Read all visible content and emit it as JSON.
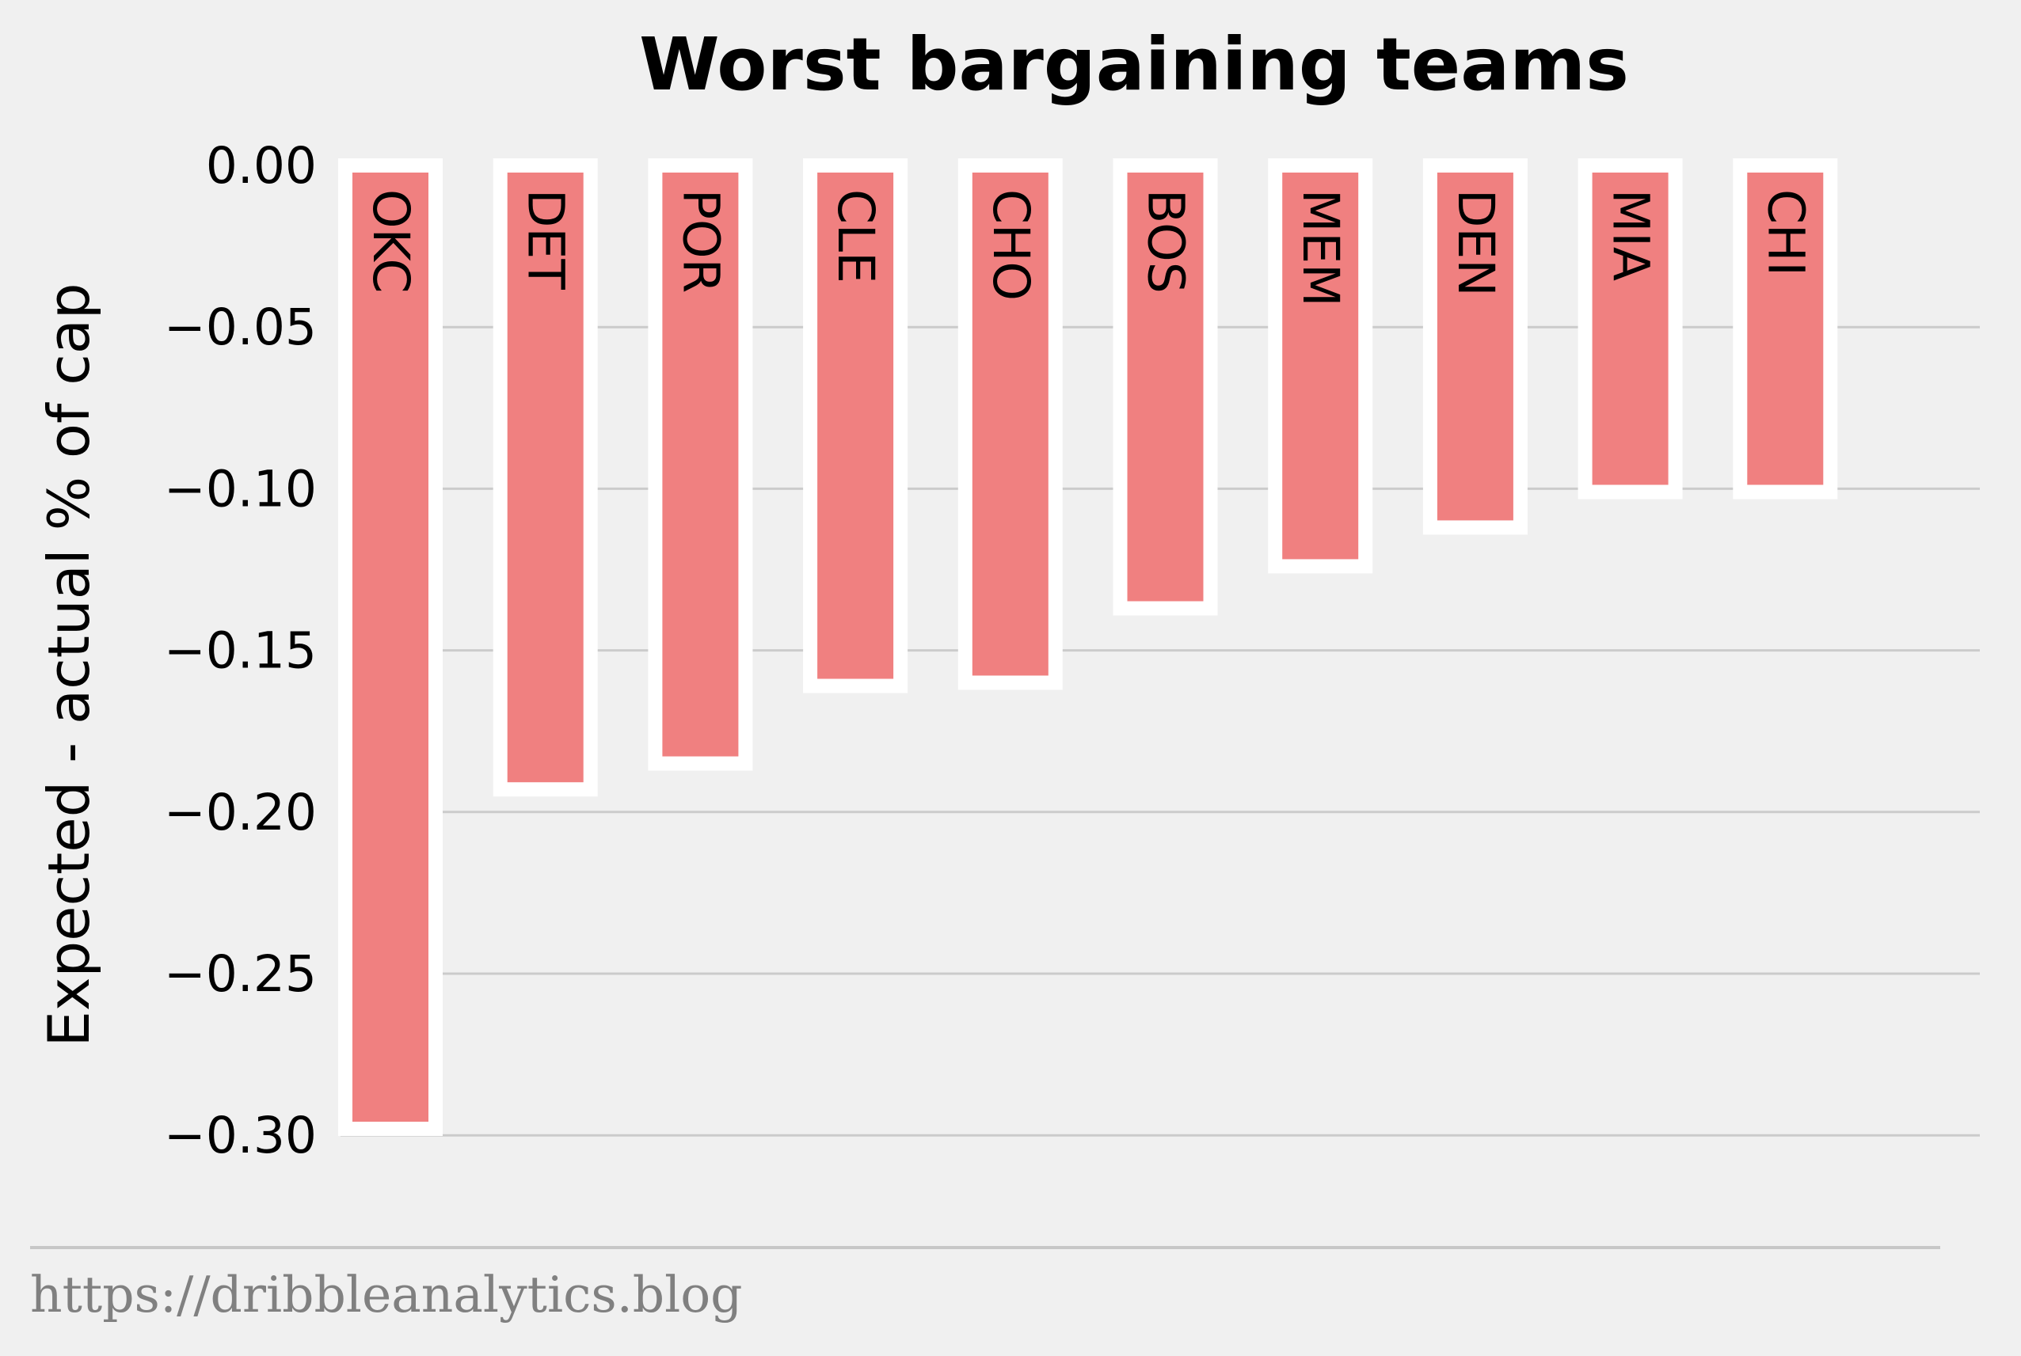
{
  "chart_data": {
    "type": "bar",
    "title": "Worst bargaining teams",
    "xlabel": "",
    "ylabel": "Expected - actual % of cap",
    "categories": [
      "OKC",
      "DET",
      "POR",
      "CLE",
      "CHO",
      "BOS",
      "MEM",
      "DEN",
      "MIA",
      "CHI"
    ],
    "values": [
      -0.298,
      -0.193,
      -0.185,
      -0.161,
      -0.16,
      -0.137,
      -0.124,
      -0.112,
      -0.101,
      -0.101
    ],
    "ylim": [
      -0.32,
      0.0
    ],
    "yticks": [
      0.0,
      -0.05,
      -0.1,
      -0.15,
      -0.2,
      -0.25,
      -0.3
    ],
    "ytick_labels": [
      "0.00",
      "−0.05",
      "−0.10",
      "−0.15",
      "−0.20",
      "−0.25",
      "−0.30"
    ],
    "grid": "horizontal",
    "bar_color": "#f08080",
    "bar_edge_color": "#ffffff",
    "background_color": "#f0f0f0"
  },
  "footer": {
    "source_text": "https://dribbleanalytics.blog"
  }
}
